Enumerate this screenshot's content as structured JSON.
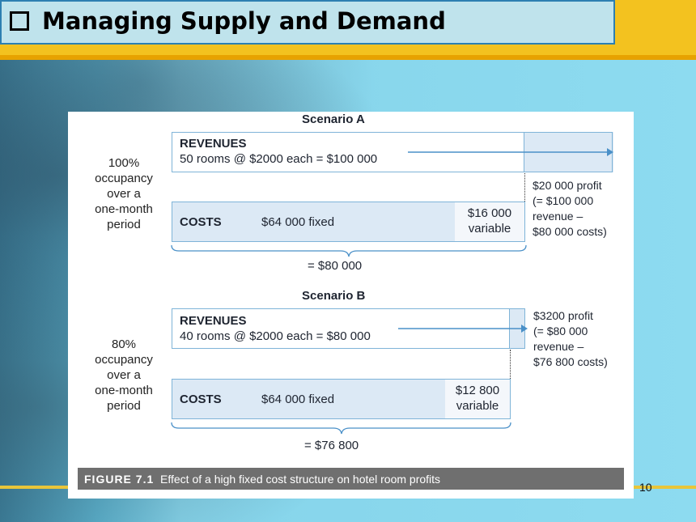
{
  "slide": {
    "title": "Managing Supply and Demand",
    "page_number": "10"
  },
  "figure": {
    "caption_label": "FIGURE 7.1",
    "caption_text": "Effect of a high fixed cost structure on hotel room profits",
    "scenarios": [
      {
        "title": "Scenario A",
        "side_label": [
          "100%",
          "occupancy",
          "over a",
          "one-month",
          "period"
        ],
        "revenues_label": "REVENUES",
        "revenues_detail": "50 rooms @ $2000 each = $100 000",
        "costs_label": "COSTS",
        "fixed_cost": "$64 000 fixed",
        "variable_cost": [
          "$16 000",
          "variable"
        ],
        "total_cost": "= $80 000",
        "profit_note": [
          "$20 000 profit",
          "(= $100 000",
          "revenue –",
          "$80 000 costs)"
        ]
      },
      {
        "title": "Scenario B",
        "side_label": [
          "80%",
          "occupancy",
          "over a",
          "one-month",
          "period"
        ],
        "revenues_label": "REVENUES",
        "revenues_detail": "40 rooms @ $2000 each = $80 000",
        "costs_label": "COSTS",
        "fixed_cost": "$64 000 fixed",
        "variable_cost": [
          "$12 800",
          "variable"
        ],
        "total_cost": "= $76 800",
        "profit_note": [
          "$3200 profit",
          "(= $80 000",
          "revenue –",
          "$76 800 costs)"
        ]
      }
    ]
  },
  "colors": {
    "title_bar": "#f3c21f",
    "title_box": "#bfe3ec",
    "box_border": "#7fb4d8",
    "box_fill": "#dce9f5",
    "caption_bar": "#6f6f6f"
  }
}
